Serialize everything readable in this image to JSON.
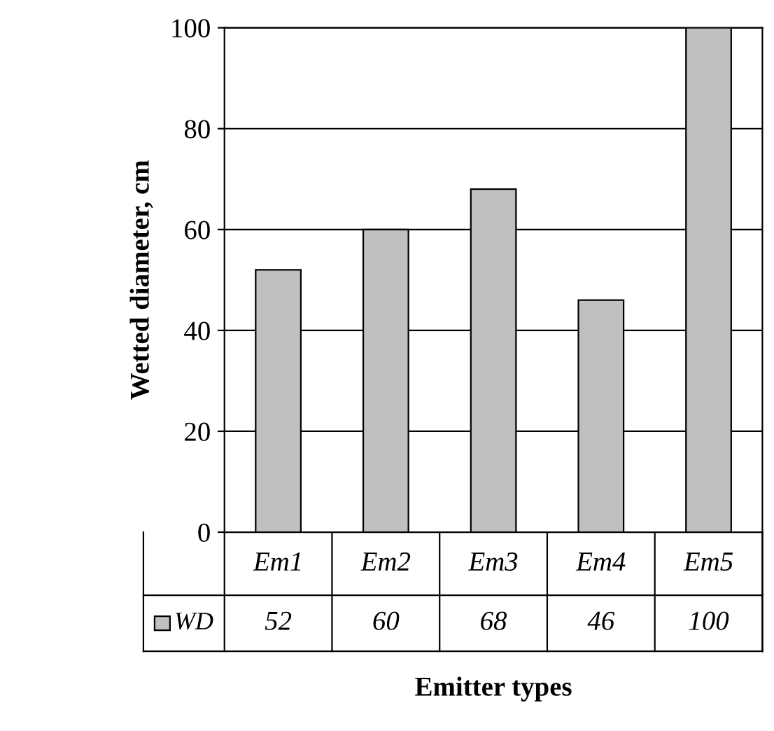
{
  "chart_data": {
    "type": "bar",
    "xlabel": "Emitter types",
    "ylabel": "Wetted diameter, cm",
    "categories": [
      "Em1",
      "Em2",
      "Em3",
      "Em4",
      "Em5"
    ],
    "series": [
      {
        "name": "WD",
        "color": "#c0c0c0",
        "values": [
          52,
          60,
          68,
          46,
          100
        ]
      }
    ],
    "ylim": [
      0,
      100
    ],
    "yticks": [
      0,
      20,
      40,
      60,
      80,
      100
    ],
    "grid": "y",
    "data_labels": true,
    "legend": "bottom"
  }
}
